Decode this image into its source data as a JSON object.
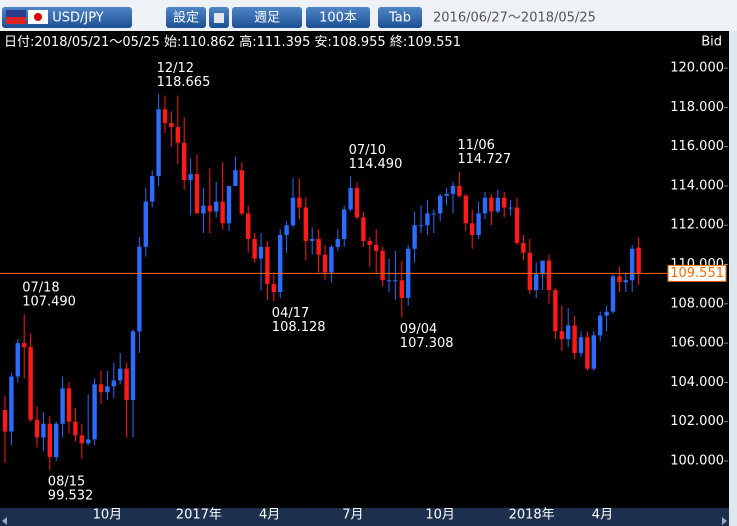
{
  "toolbar": {
    "symbol": "USD/JPY",
    "settings": "設定",
    "period": "週足",
    "count": "100本",
    "tab": "Tab",
    "range": "2016/06/27～2018/05/25"
  },
  "chart_data": {
    "type": "candlestick",
    "info": {
      "date_label": "日付:",
      "date": "2018/05/21～05/25",
      "open_label": "始:",
      "high_label": "高:",
      "low_label": "安:",
      "close_label": "終:"
    },
    "price_type": "Bid",
    "categories": [
      null,
      null,
      null,
      null,
      null,
      null,
      null,
      null,
      null,
      null,
      null,
      null,
      null,
      null,
      "10月",
      null,
      null,
      null,
      null,
      null,
      null,
      null,
      null,
      null,
      null,
      null,
      null,
      "2017年",
      null,
      null,
      null,
      null,
      null,
      null,
      null,
      null,
      null,
      null,
      null,
      null,
      "4月",
      null,
      null,
      null,
      null,
      null,
      null,
      null,
      null,
      null,
      null,
      null,
      null,
      "7月",
      null,
      null,
      null,
      null,
      null,
      null,
      null,
      null,
      null,
      null,
      null,
      null,
      "10月",
      null,
      null,
      null,
      null,
      null,
      null,
      null,
      null,
      null,
      null,
      null,
      null,
      "2018年",
      null,
      null,
      null,
      null,
      null,
      null,
      null,
      null,
      null,
      null,
      null,
      null,
      "4月",
      null,
      null,
      null,
      null,
      null,
      null,
      null
    ],
    "open": [
      102.6,
      101.5,
      104.3,
      106.0,
      105.8,
      102.1,
      101.2,
      101.9,
      100.2,
      101.9,
      103.7,
      102.0,
      101.3,
      100.9,
      101.1,
      103.9,
      103.5,
      103.8,
      104.1,
      104.7,
      103.1,
      106.6,
      110.9,
      113.2,
      114.5,
      117.9,
      117.2,
      117.0,
      116.2,
      114.3,
      114.6,
      112.6,
      113.0,
      112.7,
      113.2,
      112.1,
      114.0,
      114.8,
      112.6,
      111.3,
      110.3,
      110.9,
      109.0,
      108.6,
      111.5,
      112.0,
      113.4,
      112.9,
      111.2,
      111.3,
      110.5,
      109.6,
      110.9,
      111.3,
      112.8,
      113.9,
      112.4,
      111.2,
      111.0,
      110.7,
      109.2,
      109.2,
      109.2,
      108.3,
      110.8,
      112.0,
      112.0,
      112.6,
      112.6,
      113.5,
      113.6,
      114.0,
      113.5,
      112.1,
      111.5,
      112.6,
      113.4,
      112.7,
      113.4,
      112.9,
      112.9,
      111.1,
      110.6,
      108.7,
      109.5,
      110.2,
      108.7,
      106.6,
      106.2,
      106.9,
      105.5,
      106.3,
      104.7,
      106.4,
      107.4,
      107.6,
      109.4,
      109.1,
      109.2,
      110.862
    ],
    "high": [
      103.3,
      104.5,
      106.2,
      107.49,
      106.5,
      102.8,
      102.5,
      102.3,
      102.0,
      104.3,
      104.0,
      102.7,
      101.9,
      103.4,
      104.2,
      104.6,
      104.6,
      105.0,
      105.5,
      105.0,
      106.7,
      111.4,
      113.9,
      114.8,
      118.665,
      118.6,
      117.8,
      118.6,
      117.5,
      115.4,
      115.6,
      113.9,
      114.9,
      114.2,
      115.2,
      114.0,
      115.5,
      115.2,
      113.0,
      111.6,
      111.6,
      111.2,
      109.6,
      111.8,
      112.2,
      114.4,
      114.37,
      113.4,
      111.9,
      111.8,
      111.0,
      111.0,
      111.8,
      113.0,
      114.49,
      114.2,
      112.7,
      111.4,
      111.8,
      110.9,
      110.3,
      110.7,
      110.2,
      111.0,
      112.7,
      113.0,
      113.3,
      112.8,
      113.6,
      113.9,
      114.2,
      114.727,
      113.6,
      112.8,
      113.2,
      113.7,
      113.6,
      113.8,
      113.7,
      113.3,
      113.4,
      111.5,
      111.3,
      110.1,
      110.2,
      110.5,
      108.8,
      107.9,
      107.8,
      107.4,
      106.6,
      106.6,
      106.6,
      107.6,
      107.9,
      109.5,
      109.9,
      109.6,
      111.0,
      111.395
    ],
    "low": [
      99.9,
      100.8,
      104.0,
      104.2,
      102.0,
      100.7,
      100.5,
      99.532,
      100.0,
      101.2,
      101.4,
      101.0,
      100.1,
      100.8,
      100.8,
      102.9,
      103.1,
      103.2,
      103.9,
      101.2,
      101.2,
      105.5,
      110.4,
      112.9,
      114.0,
      116.7,
      116.0,
      115.1,
      113.8,
      112.5,
      112.6,
      111.6,
      111.6,
      112.4,
      111.8,
      111.7,
      114.0,
      112.5,
      110.6,
      110.1,
      108.7,
      108.2,
      108.128,
      108.3,
      110.6,
      111.9,
      112.3,
      110.2,
      110.5,
      109.6,
      109.2,
      109.1,
      110.7,
      110.9,
      112.7,
      112.3,
      110.9,
      109.9,
      109.5,
      108.9,
      108.6,
      108.2,
      107.308,
      107.9,
      110.1,
      111.6,
      111.5,
      111.6,
      112.2,
      113.0,
      112.6,
      113.4,
      111.7,
      110.8,
      111.3,
      112.3,
      112.0,
      112.6,
      112.4,
      112.5,
      111.0,
      110.2,
      108.5,
      108.3,
      108.7,
      108.0,
      106.2,
      105.6,
      105.8,
      105.2,
      105.3,
      104.6,
      104.6,
      106.1,
      106.6,
      107.5,
      108.6,
      108.6,
      108.6,
      108.955
    ],
    "close": [
      101.5,
      104.3,
      106.0,
      105.8,
      102.1,
      101.2,
      101.9,
      100.2,
      101.9,
      103.7,
      102.0,
      101.3,
      100.9,
      101.1,
      103.9,
      103.5,
      103.8,
      104.1,
      104.7,
      103.1,
      106.6,
      110.9,
      113.2,
      114.5,
      117.9,
      117.2,
      117.0,
      116.2,
      114.3,
      114.6,
      112.6,
      113.0,
      112.7,
      113.2,
      112.1,
      114.0,
      114.8,
      112.6,
      111.3,
      110.3,
      110.9,
      109.0,
      108.6,
      111.5,
      112.0,
      113.4,
      112.9,
      111.2,
      111.3,
      110.5,
      109.6,
      110.9,
      111.3,
      112.8,
      113.9,
      112.4,
      111.2,
      111.0,
      110.7,
      109.2,
      109.2,
      109.2,
      108.3,
      110.8,
      112.0,
      112.0,
      112.6,
      112.6,
      113.5,
      113.6,
      114.0,
      113.5,
      112.1,
      111.5,
      112.6,
      113.4,
      112.7,
      113.4,
      112.9,
      112.9,
      111.1,
      110.6,
      108.7,
      109.5,
      110.2,
      108.7,
      106.6,
      106.2,
      106.9,
      105.5,
      106.3,
      104.7,
      106.4,
      107.4,
      107.6,
      109.4,
      109.1,
      109.2,
      110.8,
      109.551
    ],
    "up_color": "#2d6bff",
    "down_color": "#ff1a1a",
    "price_line_color": "#ff6a00",
    "annotations": [
      {
        "date": "12/12",
        "value": 118.665
      },
      {
        "date": "07/18",
        "value": 107.49,
        "value_label": "107.490"
      },
      {
        "date": "08/15",
        "value": 99.532
      },
      {
        "date": "04/17",
        "value": 108.128
      },
      {
        "date": "07/10",
        "value": 114.49,
        "value_label": "114.490"
      },
      {
        "date": "09/04",
        "value": 107.308
      },
      {
        "date": "11/06",
        "value": 114.727
      }
    ],
    "ylim": [
      97.76,
      120.92
    ],
    "yticks": [
      {
        "value": 100,
        "label": "100.000"
      },
      {
        "value": 102,
        "label": "102.000"
      },
      {
        "value": 104,
        "label": "104.000"
      },
      {
        "value": 106,
        "label": "106.000"
      },
      {
        "value": 108,
        "label": "108.000"
      },
      {
        "value": 110,
        "label": "110.000"
      },
      {
        "value": 112,
        "label": "112.000"
      },
      {
        "value": 114,
        "label": "114.000"
      },
      {
        "value": 116,
        "label": "116.000"
      },
      {
        "value": 118,
        "label": "118.000"
      },
      {
        "value": 120,
        "label": "120.000"
      }
    ]
  }
}
